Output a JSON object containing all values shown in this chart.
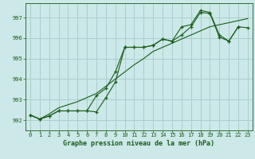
{
  "title": "Graphe pression niveau de la mer (hPa)",
  "bg_color": "#cce8e8",
  "grid_color": "#aacece",
  "line_color": "#1a5c1a",
  "x_ticks": [
    0,
    1,
    2,
    3,
    4,
    5,
    6,
    7,
    8,
    9,
    10,
    11,
    12,
    13,
    14,
    15,
    16,
    17,
    18,
    19,
    20,
    21,
    22,
    23
  ],
  "ylim": [
    991.5,
    997.7
  ],
  "yticks": [
    992,
    993,
    994,
    995,
    996,
    997
  ],
  "series1": [
    992.25,
    992.05,
    992.2,
    992.45,
    992.45,
    992.45,
    992.45,
    992.4,
    993.1,
    993.85,
    995.55,
    995.55,
    995.55,
    995.65,
    995.95,
    995.85,
    996.15,
    996.55,
    997.25,
    997.2,
    996.05,
    995.85,
    996.55,
    null
  ],
  "series2": [
    992.25,
    992.05,
    992.2,
    992.45,
    992.45,
    992.45,
    992.45,
    993.2,
    993.55,
    994.35,
    995.55,
    995.55,
    995.55,
    995.65,
    995.95,
    995.85,
    996.55,
    996.65,
    997.35,
    997.25,
    996.15,
    995.85,
    996.55,
    996.5
  ],
  "series3": [
    992.25,
    992.05,
    992.3,
    992.6,
    992.75,
    992.9,
    993.1,
    993.3,
    993.65,
    994.0,
    994.35,
    994.7,
    995.0,
    995.35,
    995.55,
    995.75,
    995.95,
    996.15,
    996.35,
    996.55,
    996.65,
    996.75,
    996.85,
    996.95
  ]
}
